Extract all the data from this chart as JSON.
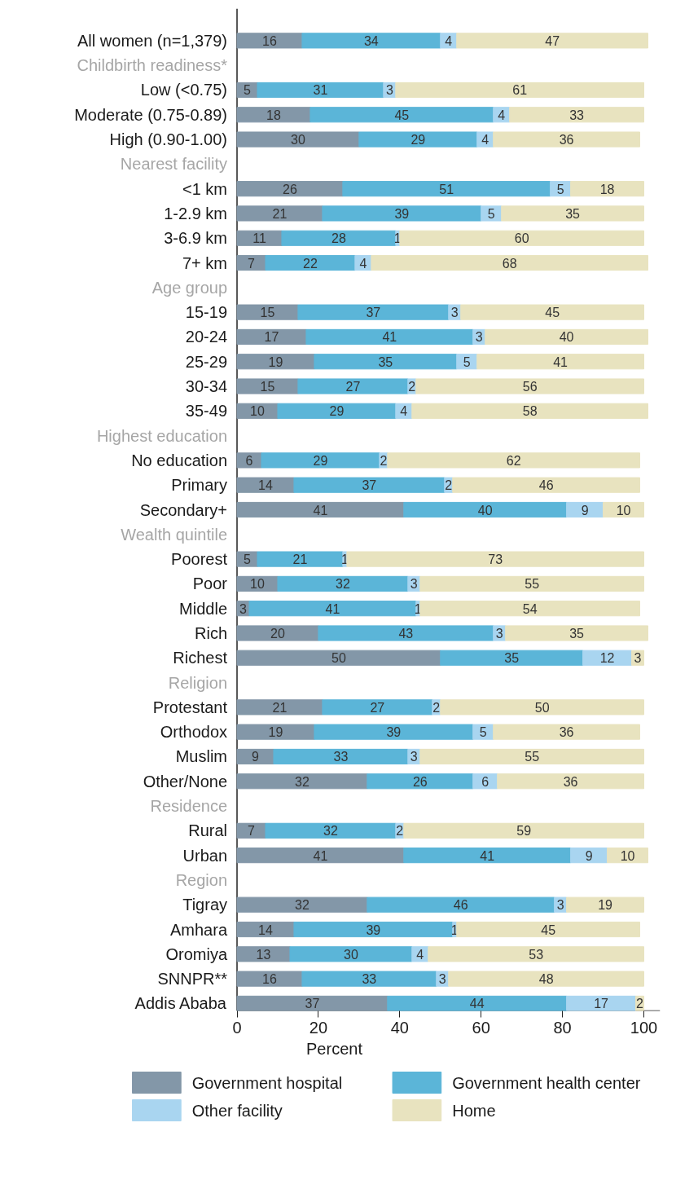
{
  "chart_data": {
    "type": "bar",
    "orientation": "horizontal",
    "stacked": true,
    "data_labels": true,
    "xlabel": "Percent",
    "xlim": [
      0,
      104
    ],
    "xticks": [
      0,
      20,
      40,
      60,
      80,
      100
    ],
    "grid": false,
    "legend": "bottom",
    "categories": [
      "All women (n=1,379)",
      "Childbirth readiness*",
      "Low (<0.75)",
      "Moderate (0.75-0.89)",
      "High (0.90-1.00)",
      "Nearest facility",
      "<1 km",
      "1-2.9 km",
      "3-6.9 km",
      "7+ km",
      "Age group",
      "15-19",
      "20-24",
      "25-29",
      "30-34",
      "35-49",
      "Highest education",
      "No education",
      "Primary",
      "Secondary+",
      "Wealth quintile",
      "Poorest",
      "Poor",
      "Middle",
      "Rich",
      "Richest",
      "Religion",
      "Protestant",
      "Orthodox",
      "Muslim",
      "Other/None",
      "Residence",
      "Rural",
      "Urban",
      "Region",
      "Tigray",
      "Amhara",
      "Oromiya",
      "SNNPR**",
      "Addis Ababa"
    ],
    "series": [
      {
        "name": "Government hospital",
        "color": "#8397a8",
        "values": [
          16,
          null,
          5,
          18,
          30,
          null,
          26,
          21,
          11,
          7,
          null,
          15,
          17,
          19,
          15,
          10,
          null,
          6,
          14,
          41,
          null,
          5,
          10,
          3,
          20,
          50,
          null,
          21,
          19,
          9,
          32,
          null,
          7,
          41,
          null,
          32,
          14,
          13,
          16,
          37
        ]
      },
      {
        "name": "Government health center",
        "color": "#5bb5d8",
        "values": [
          34,
          null,
          31,
          45,
          29,
          null,
          51,
          39,
          28,
          22,
          null,
          37,
          41,
          35,
          27,
          29,
          null,
          29,
          37,
          40,
          null,
          21,
          32,
          41,
          43,
          35,
          null,
          27,
          39,
          33,
          26,
          null,
          32,
          41,
          null,
          46,
          39,
          30,
          33,
          44
        ]
      },
      {
        "name": "Other facility",
        "color": "#a9d5f0",
        "values": [
          4,
          null,
          3,
          4,
          4,
          null,
          5,
          5,
          1,
          4,
          null,
          3,
          3,
          5,
          2,
          4,
          null,
          2,
          2,
          9,
          null,
          1,
          3,
          1,
          3,
          12,
          null,
          2,
          5,
          3,
          6,
          null,
          2,
          9,
          null,
          3,
          1,
          4,
          3,
          17
        ]
      },
      {
        "name": "Home",
        "color": "#e8e3bf",
        "values": [
          47,
          null,
          61,
          33,
          36,
          null,
          18,
          35,
          60,
          68,
          null,
          45,
          40,
          41,
          56,
          58,
          null,
          62,
          46,
          10,
          null,
          73,
          55,
          54,
          35,
          3,
          null,
          50,
          36,
          55,
          36,
          null,
          59,
          10,
          null,
          19,
          45,
          53,
          48,
          2
        ]
      }
    ]
  }
}
